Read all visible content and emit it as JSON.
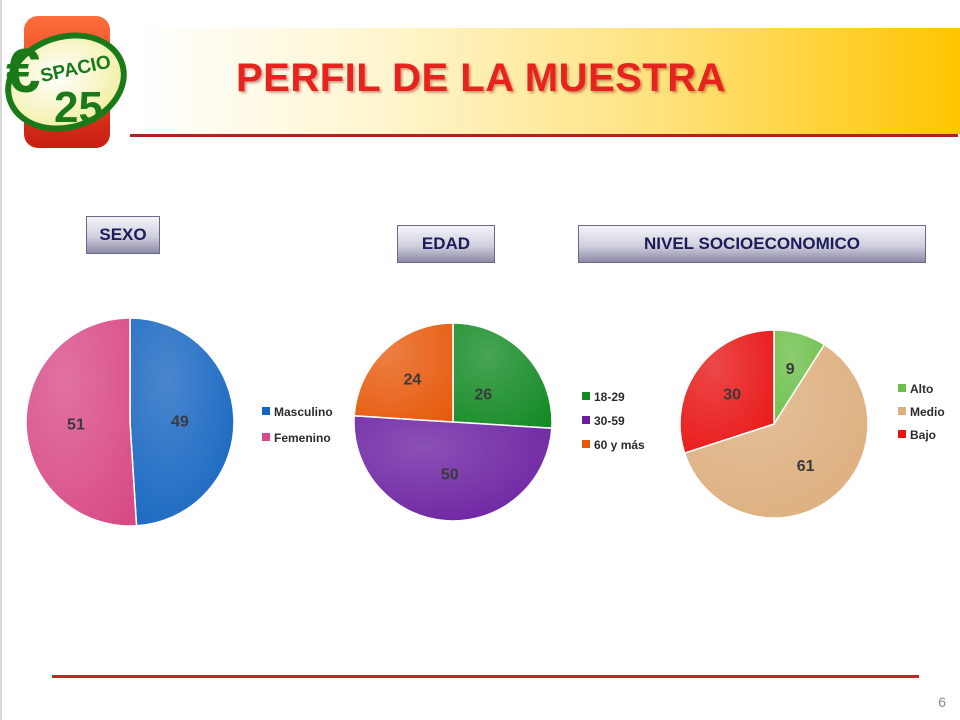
{
  "title": "PERFIL DE LA MUESTRA",
  "logo": {
    "text_top": "SPACIO",
    "text_bottom": "25"
  },
  "page_number": "6",
  "colors": {
    "title": "#e6231d",
    "rule": "#c62828"
  },
  "chart_data": [
    {
      "type": "pie",
      "title": "SEXO",
      "legend": "right",
      "categories": [
        "Masculino",
        "Femenino"
      ],
      "values": [
        49,
        51
      ],
      "colors": [
        "#1565c0",
        "#d84a85"
      ]
    },
    {
      "type": "pie",
      "title": "EDAD",
      "legend": "right",
      "categories": [
        "18-29",
        "30-59",
        "60 y más"
      ],
      "values": [
        26,
        50,
        24
      ],
      "colors": [
        "#138a24",
        "#6a1fa0",
        "#e75a0c"
      ]
    },
    {
      "type": "pie",
      "title": "NIVEL SOCIOECONOMICO",
      "legend": "right",
      "categories": [
        "Alto",
        "Medio",
        "Bajo"
      ],
      "values": [
        9,
        61,
        30
      ],
      "colors": [
        "#6cbf4a",
        "#dcae7c",
        "#e81414"
      ]
    }
  ]
}
